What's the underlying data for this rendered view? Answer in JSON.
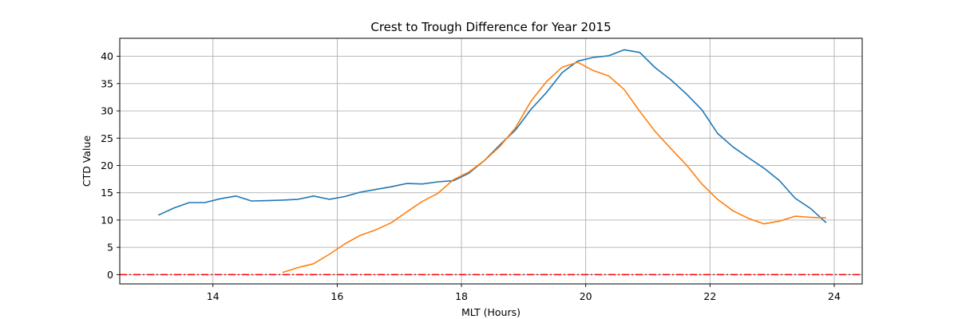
{
  "chart_data": {
    "type": "line",
    "title": "Crest to Trough Difference for Year 2015",
    "xlabel": "MLT (Hours)",
    "ylabel": "CTD Value",
    "xlim": [
      12.5,
      24.45
    ],
    "ylim": [
      -1.7,
      43.3
    ],
    "xticks": [
      14,
      16,
      18,
      20,
      22,
      24
    ],
    "yticks": [
      0,
      5,
      10,
      15,
      20,
      25,
      30,
      35,
      40
    ],
    "grid": true,
    "series": [
      {
        "color": "#1f77b4",
        "x": [
          13.12,
          13.37,
          13.62,
          13.87,
          14.12,
          14.37,
          14.62,
          14.87,
          15.12,
          15.37,
          15.62,
          15.87,
          16.12,
          16.37,
          16.62,
          16.87,
          17.12,
          17.37,
          17.62,
          17.87,
          18.12,
          18.37,
          18.62,
          18.87,
          19.12,
          19.37,
          19.62,
          19.87,
          20.12,
          20.37,
          20.62,
          20.87,
          21.12,
          21.37,
          21.62,
          21.87,
          22.12,
          22.37,
          22.62,
          22.87,
          23.12,
          23.37,
          23.62,
          23.87
        ],
        "y": [
          10.9,
          12.2,
          13.2,
          13.2,
          13.9,
          14.4,
          13.5,
          13.55,
          13.65,
          13.8,
          14.4,
          13.8,
          14.3,
          15.1,
          15.6,
          16.1,
          16.7,
          16.6,
          17.0,
          17.2,
          18.6,
          20.9,
          23.8,
          26.5,
          30.3,
          33.4,
          37.0,
          39.1,
          39.8,
          40.1,
          41.2,
          40.7,
          37.9,
          35.7,
          33.1,
          30.2,
          25.9,
          23.4,
          21.4,
          19.5,
          17.2,
          14.0,
          12.1,
          9.5
        ]
      },
      {
        "color": "#ff7f0e",
        "x": [
          15.12,
          15.37,
          15.62,
          15.87,
          16.12,
          16.37,
          16.62,
          16.87,
          17.12,
          17.37,
          17.62,
          17.87,
          18.12,
          18.37,
          18.62,
          18.87,
          19.12,
          19.37,
          19.62,
          19.87,
          20.12,
          20.37,
          20.62,
          20.87,
          21.12,
          21.37,
          21.62,
          21.87,
          22.12,
          22.37,
          22.62,
          22.87,
          23.12,
          23.37,
          23.62,
          23.87
        ],
        "y": [
          0.4,
          1.3,
          2.0,
          3.7,
          5.6,
          7.2,
          8.2,
          9.5,
          11.5,
          13.4,
          14.9,
          17.4,
          18.8,
          20.9,
          23.5,
          26.9,
          31.8,
          35.4,
          38.0,
          38.9,
          37.4,
          36.4,
          33.9,
          29.9,
          26.2,
          23.1,
          20.1,
          16.6,
          13.8,
          11.7,
          10.3,
          9.3,
          9.8,
          10.7,
          10.5,
          10.4
        ]
      }
    ],
    "reference_line": {
      "y": 0,
      "color": "#ff0000",
      "style": "dash-dot"
    }
  }
}
